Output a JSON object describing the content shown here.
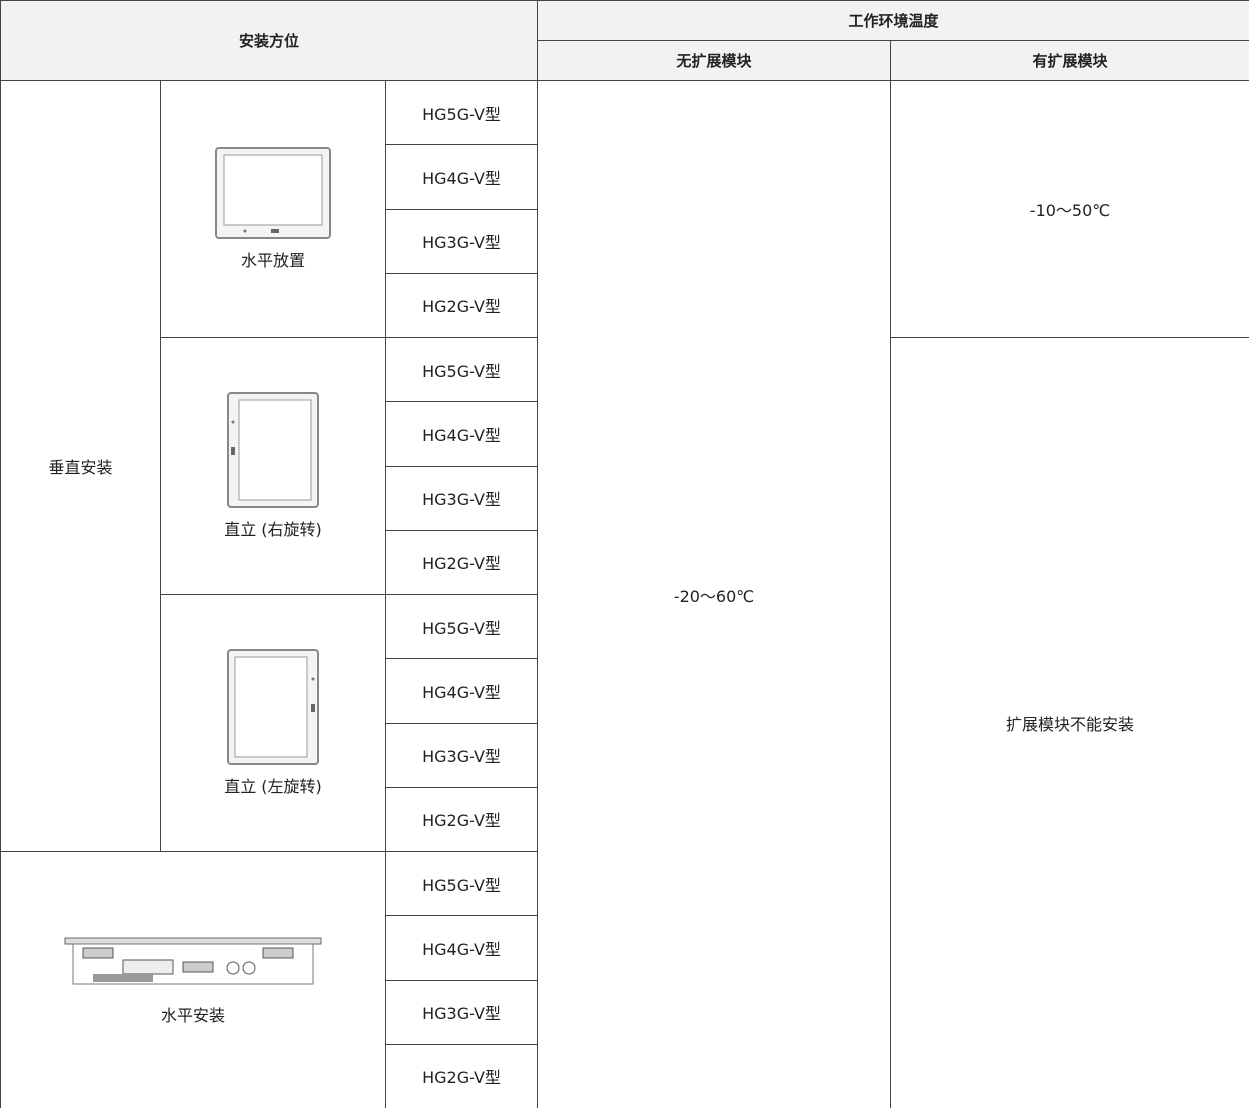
{
  "header": {
    "group": "安装方位",
    "temp": "工作环境温度",
    "no_ext": "无扩展模块",
    "with_ext": "有扩展模块"
  },
  "vertical_label": "垂直安装",
  "sections": [
    {
      "label": "水平放置",
      "models": [
        "HG5G-V型",
        "HG4G-V型",
        "HG3G-V型",
        "HG2G-V型"
      ]
    },
    {
      "label": "直立 (右旋转)",
      "models": [
        "HG5G-V型",
        "HG4G-V型",
        "HG3G-V型",
        "HG2G-V型"
      ]
    },
    {
      "label": "直立 (左旋转)",
      "models": [
        "HG5G-V型",
        "HG4G-V型",
        "HG3G-V型",
        "HG2G-V型"
      ]
    },
    {
      "label": "水平安装",
      "models": [
        "HG5G-V型",
        "HG4G-V型",
        "HG3G-V型",
        "HG2G-V型"
      ]
    }
  ],
  "no_ext_value": "-20～60℃",
  "with_ext_values": [
    "-10～50℃",
    "扩展模块不能安装"
  ]
}
